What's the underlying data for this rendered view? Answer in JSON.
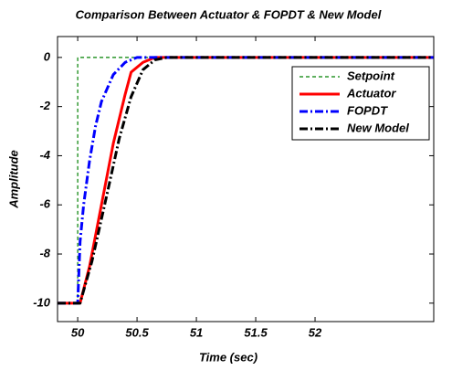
{
  "chart_data": {
    "type": "line",
    "title": "Comparison Between Actuator & FOPDT & New Model",
    "xlabel": "Time (sec)",
    "ylabel": "Amplitude",
    "xlim": [
      49.83,
      53.0
    ],
    "ylim": [
      -10.75,
      0.85
    ],
    "xticks": [
      50,
      50.5,
      51,
      51.5,
      52
    ],
    "yticks": [
      0,
      -2,
      -4,
      -6,
      -8,
      -10
    ],
    "grid": false,
    "legend": "upper right",
    "series": [
      {
        "name": "Setpoint",
        "color": "#008000",
        "dash": "4,3",
        "width": 1.2,
        "x": [
          49.83,
          50,
          50,
          53
        ],
        "values": [
          -10,
          -10,
          0,
          0
        ]
      },
      {
        "name": "Actuator",
        "color": "#ff0000",
        "dash": "none",
        "width": 3,
        "x": [
          49.83,
          50.02,
          50.1,
          50.2,
          50.3,
          50.4,
          50.45,
          50.5,
          50.55,
          50.65,
          53
        ],
        "values": [
          -10,
          -10,
          -8.5,
          -6,
          -3.5,
          -1.5,
          -0.6,
          -0.4,
          -0.2,
          0,
          0
        ]
      },
      {
        "name": "FOPDT",
        "color": "#0000ff",
        "dash": "9,3,2,3",
        "width": 3,
        "x": [
          49.83,
          50,
          50.02,
          50.05,
          50.1,
          50.15,
          50.2,
          50.3,
          50.4,
          50.5,
          53
        ],
        "values": [
          -10,
          -10,
          -7.5,
          -6,
          -4.2,
          -2.8,
          -1.8,
          -0.7,
          -0.2,
          0,
          0
        ]
      },
      {
        "name": "New Model",
        "color": "#000000",
        "dash": "9,3,2,3",
        "width": 3,
        "x": [
          49.83,
          50.02,
          50.12,
          50.25,
          50.35,
          50.45,
          50.55,
          50.65,
          50.75,
          53
        ],
        "values": [
          -10,
          -10,
          -8.3,
          -5.5,
          -3.3,
          -1.6,
          -0.5,
          -0.1,
          0,
          0
        ]
      }
    ]
  }
}
